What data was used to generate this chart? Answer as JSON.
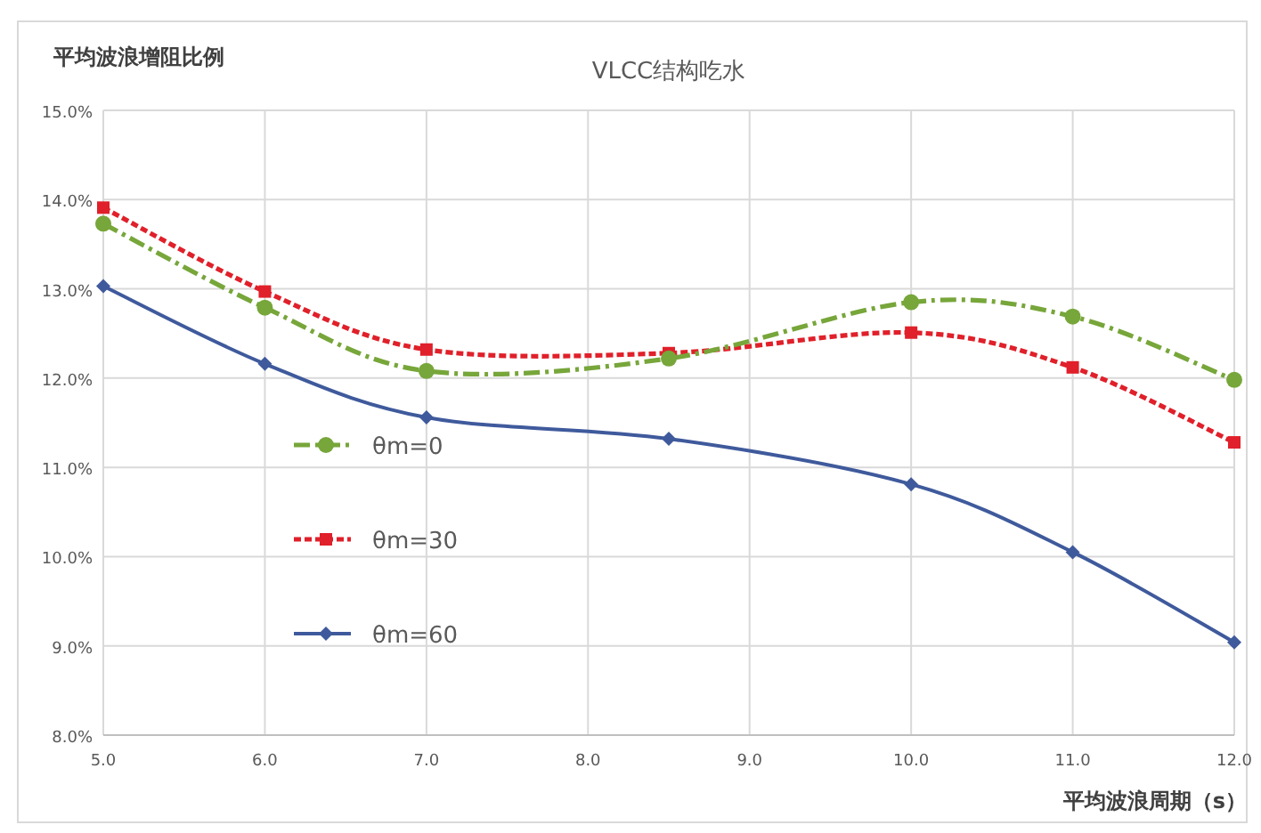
{
  "chart_data": {
    "type": "line",
    "title": "VLCC结构吃水",
    "xlabel": "平均波浪周期（s）",
    "ylabel": "平均波浪增阻比例",
    "xlim": [
      5,
      12
    ],
    "xticks": [
      {
        "value": 5,
        "label": "5.0"
      },
      {
        "value": 6,
        "label": "6.0"
      },
      {
        "value": 7,
        "label": "7.0"
      },
      {
        "value": 8,
        "label": "8.0"
      },
      {
        "value": 9,
        "label": "9.0"
      },
      {
        "value": 10,
        "label": "10.0"
      },
      {
        "value": 11,
        "label": "11.0"
      },
      {
        "value": 12,
        "label": "12.0"
      }
    ],
    "ylim": [
      8,
      15
    ],
    "yticks": [
      {
        "value": 8,
        "label": "8.0%"
      },
      {
        "value": 9,
        "label": "9.0%"
      },
      {
        "value": 10,
        "label": "10.0%"
      },
      {
        "value": 11,
        "label": "11.0%"
      },
      {
        "value": 12,
        "label": "12.0%"
      },
      {
        "value": 13,
        "label": "13.0%"
      },
      {
        "value": 14,
        "label": "14.0%"
      },
      {
        "value": 15,
        "label": "15.0%"
      }
    ],
    "grid": true,
    "legend": "left",
    "series": [
      {
        "name": "θm=0",
        "color": "#77a63a",
        "marker": "circle",
        "line_style": "dashed",
        "x": [
          5,
          6,
          7,
          8.5,
          10,
          11,
          12
        ],
        "values": [
          13.73,
          12.79,
          12.08,
          12.22,
          12.85,
          12.69,
          11.98
        ]
      },
      {
        "name": "θm=30",
        "color": "#e0202a",
        "marker": "square",
        "line_style": "dotted",
        "x": [
          5,
          6,
          7,
          8.5,
          10,
          11,
          12
        ],
        "values": [
          13.91,
          12.97,
          12.32,
          12.28,
          12.51,
          12.12,
          11.28
        ]
      },
      {
        "name": "θm=60",
        "color": "#3f5a9c",
        "marker": "diamond",
        "line_style": "solid",
        "x": [
          5,
          6,
          7,
          8.5,
          10,
          11,
          12
        ],
        "values": [
          13.03,
          12.16,
          11.56,
          11.32,
          10.81,
          10.05,
          9.04
        ]
      }
    ]
  }
}
